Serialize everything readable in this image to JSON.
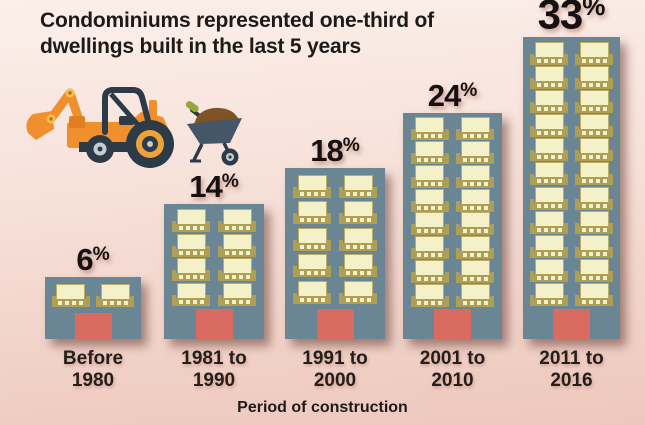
{
  "title": {
    "line1": "Condominiums represented one-third of",
    "line2": "dwellings built in the last 5 years"
  },
  "xlabel": "Period of construction",
  "icons": {
    "left": "excavator-icon",
    "right": "wheelbarrow-icon"
  },
  "chart_data": {
    "type": "bar",
    "subtype": "pictorial-building-bars",
    "title": "Condominiums represented one-third of dwellings built in the last 5 years",
    "xlabel": "Period of construction",
    "unit": "%",
    "categories": [
      "Before 1980",
      "1981 to 1990",
      "1991 to 2000",
      "2001 to 2010",
      "2011 to 2016"
    ],
    "values": [
      6,
      14,
      18,
      24,
      33
    ],
    "ylim": [
      0,
      33
    ],
    "grid": "off",
    "legend": "none",
    "bars": [
      {
        "label": "6",
        "suffix": "%",
        "category_line1": "Before",
        "category_line2": "1980",
        "window_rows": 1,
        "window_cols": 2
      },
      {
        "label": "14",
        "suffix": "%",
        "category_line1": "1981 to",
        "category_line2": "1990",
        "window_rows": 4,
        "window_cols": 2
      },
      {
        "label": "18",
        "suffix": "%",
        "category_line1": "1991 to",
        "category_line2": "2000",
        "window_rows": 5,
        "window_cols": 2
      },
      {
        "label": "24",
        "suffix": "%",
        "category_line1": "2001 to",
        "category_line2": "2010",
        "window_rows": 8,
        "window_cols": 2
      },
      {
        "label": "33",
        "suffix": "%",
        "category_line1": "2011 to",
        "category_line2": "2016",
        "window_rows": 11,
        "window_cols": 2
      }
    ],
    "colors": {
      "building": "#6a8593",
      "window": "#f4f0c8",
      "balcony": "#ae9f57",
      "door": "#d96b60",
      "background_top": "#fbeee9",
      "background_bottom": "#edc7bc",
      "text": "#1e1a19",
      "excavator_orange": "#ef8f2e",
      "machine_navy": "#2d3b49",
      "wheel_rim_orange": "#f0a23a",
      "wheel_ring_gray": "#c7ccd1",
      "joint_yellow": "#f3c14b",
      "dirt_brown": "#7e5426",
      "handle_green": "#93a83b",
      "tub_slate": "#445668"
    }
  }
}
